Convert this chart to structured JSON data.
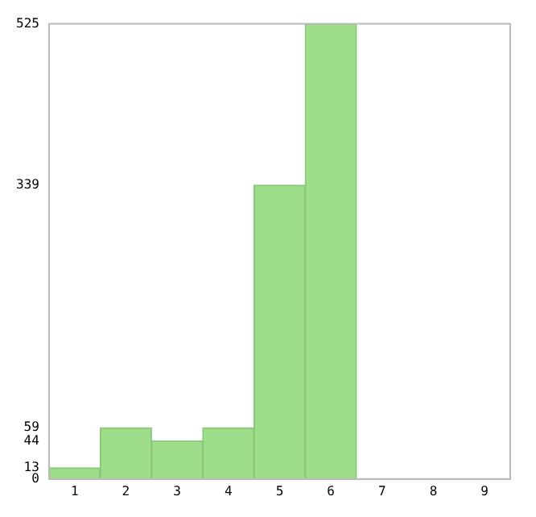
{
  "chart_data": {
    "type": "bar",
    "categories": [
      "1",
      "2",
      "3",
      "4",
      "5",
      "6",
      "7",
      "8",
      "9"
    ],
    "values": [
      13,
      59,
      44,
      59,
      339,
      525,
      0,
      0,
      0
    ],
    "color": "#9ede8a",
    "ylim": [
      0,
      525
    ],
    "yticks": [
      0,
      13,
      44,
      59,
      339,
      525
    ],
    "grid": false,
    "legend": false
  }
}
